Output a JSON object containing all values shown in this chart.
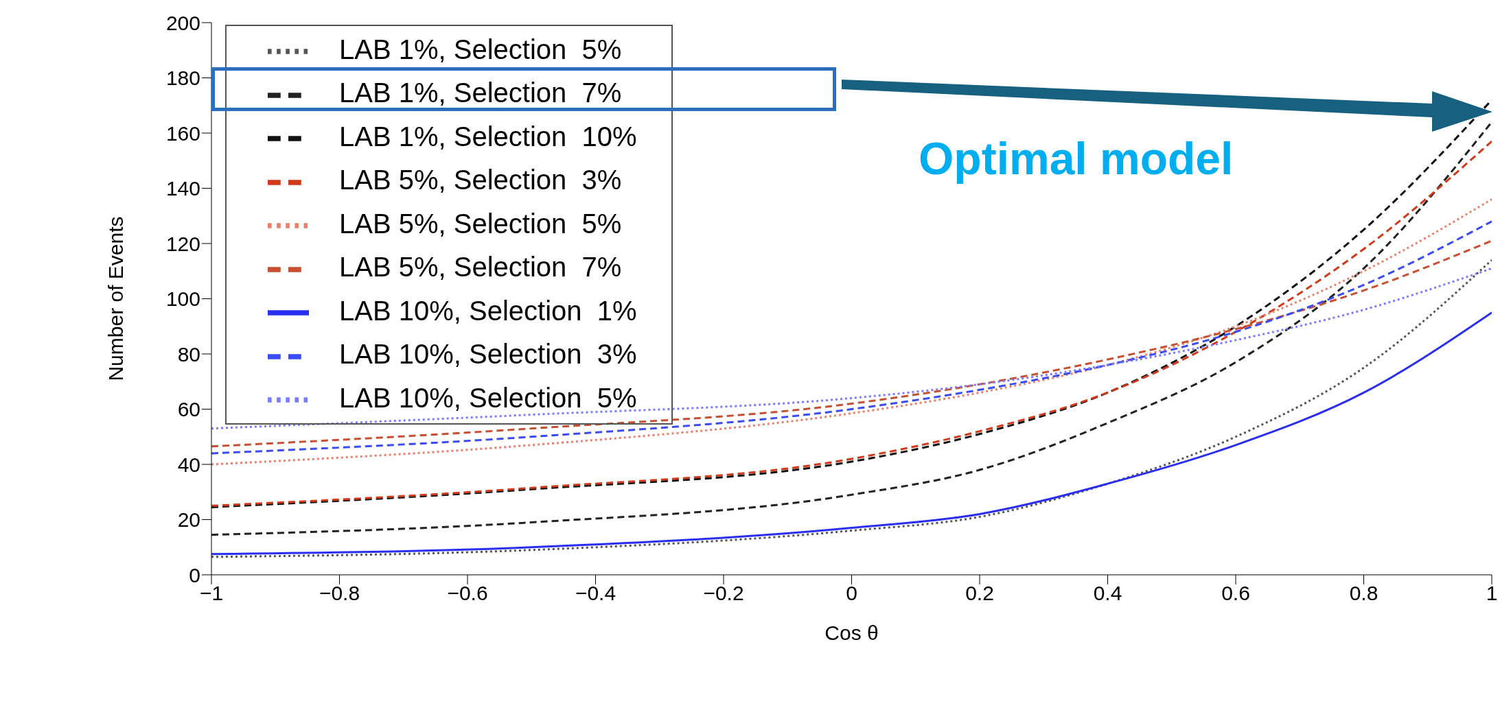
{
  "chart_data": {
    "type": "line",
    "xlabel": "Cos θ",
    "ylabel": "Number of Events",
    "x": [
      -1,
      -0.5,
      0,
      0.2,
      0.4,
      0.6,
      0.8,
      1
    ],
    "series": [
      {
        "name": "LAB 1%, Selection  5%",
        "color": "#555555",
        "line_style": "dotted",
        "values": [
          6.5,
          9,
          16,
          21,
          33,
          50,
          75,
          114
        ]
      },
      {
        "name": "LAB 1%, Selection  7%",
        "color": "#222222",
        "line_style": "dashed",
        "values": [
          14.5,
          19,
          29,
          38,
          55,
          77,
          111,
          164
        ]
      },
      {
        "name": "LAB 1%, Selection  10%",
        "color": "#111111",
        "line_style": "dashed",
        "values": [
          24.5,
          31,
          41,
          51,
          66,
          90,
          125,
          172
        ]
      },
      {
        "name": "LAB 5%, Selection  3%",
        "color": "#d03a1a",
        "line_style": "dashed",
        "values": [
          25,
          31.5,
          42,
          52,
          66,
          88,
          118,
          157
        ]
      },
      {
        "name": "LAB 5%, Selection  5%",
        "color": "#e8806a",
        "line_style": "dotted",
        "values": [
          40,
          47,
          58.5,
          66,
          76,
          90,
          110,
          136
        ]
      },
      {
        "name": "LAB 5%, Selection  7%",
        "color": "#c85030",
        "line_style": "dashed",
        "values": [
          46.5,
          53,
          62,
          69,
          78,
          89,
          103,
          121
        ]
      },
      {
        "name": "LAB 10%, Selection  1%",
        "color": "#2a2ef0",
        "line_style": "solid",
        "values": [
          7.5,
          10,
          17,
          22,
          33,
          47,
          66,
          95
        ]
      },
      {
        "name": "LAB 10%, Selection  3%",
        "color": "#3a4cf5",
        "line_style": "dashed",
        "values": [
          44,
          50,
          60,
          67,
          76,
          88,
          105,
          128
        ]
      },
      {
        "name": "LAB 10%, Selection  5%",
        "color": "#7a7cff",
        "line_style": "dotted",
        "values": [
          53,
          58,
          64,
          69,
          76,
          85,
          96,
          111
        ]
      }
    ],
    "xlim": [
      -1,
      1
    ],
    "xticks": [
      {
        "value": -1,
        "label": "−1"
      },
      {
        "value": -0.8,
        "label": "−0.8"
      },
      {
        "value": -0.6,
        "label": "−0.6"
      },
      {
        "value": -0.4,
        "label": "−0.4"
      },
      {
        "value": -0.2,
        "label": "−0.2"
      },
      0,
      0.2,
      0.4,
      0.6,
      0.8,
      1
    ],
    "ylim": [
      0,
      200
    ],
    "yticks": [
      0,
      20,
      40,
      60,
      80,
      100,
      120,
      140,
      160,
      180,
      200
    ],
    "legend": "top left",
    "grid": false,
    "annotations": [
      "Optimal model"
    ]
  }
}
